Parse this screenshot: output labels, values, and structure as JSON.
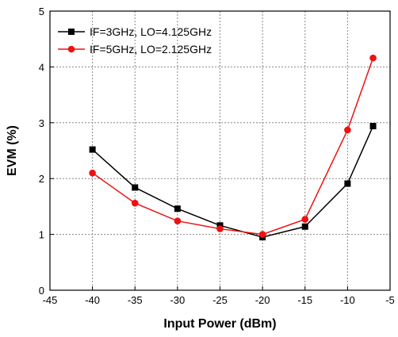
{
  "chart_data": {
    "type": "line",
    "title": "",
    "xlabel": "Input Power (dBm)",
    "ylabel": "EVM (%)",
    "xlim": [
      -45,
      -5
    ],
    "ylim": [
      0,
      5
    ],
    "xticks": [
      -45,
      -40,
      -35,
      -30,
      -25,
      -20,
      -15,
      -10,
      -5
    ],
    "yticks": [
      0,
      1,
      2,
      3,
      4,
      5
    ],
    "grid": true,
    "legend_position": "top-left",
    "series": [
      {
        "name": "IF=3GHz, LO=4.125GHz",
        "color": "#000000",
        "marker": "square",
        "x": [
          -40,
          -35,
          -30,
          -25,
          -20,
          -15,
          -10,
          -7
        ],
        "y": [
          2.52,
          1.84,
          1.46,
          1.16,
          0.95,
          1.14,
          1.91,
          2.94
        ]
      },
      {
        "name": "IF=5GHz, LO=2.125GHz",
        "color": "#ee1111",
        "marker": "circle",
        "x": [
          -40,
          -35,
          -30,
          -25,
          -20,
          -15,
          -10,
          -7
        ],
        "y": [
          2.1,
          1.56,
          1.24,
          1.1,
          1.0,
          1.27,
          2.87,
          4.16
        ]
      }
    ]
  }
}
